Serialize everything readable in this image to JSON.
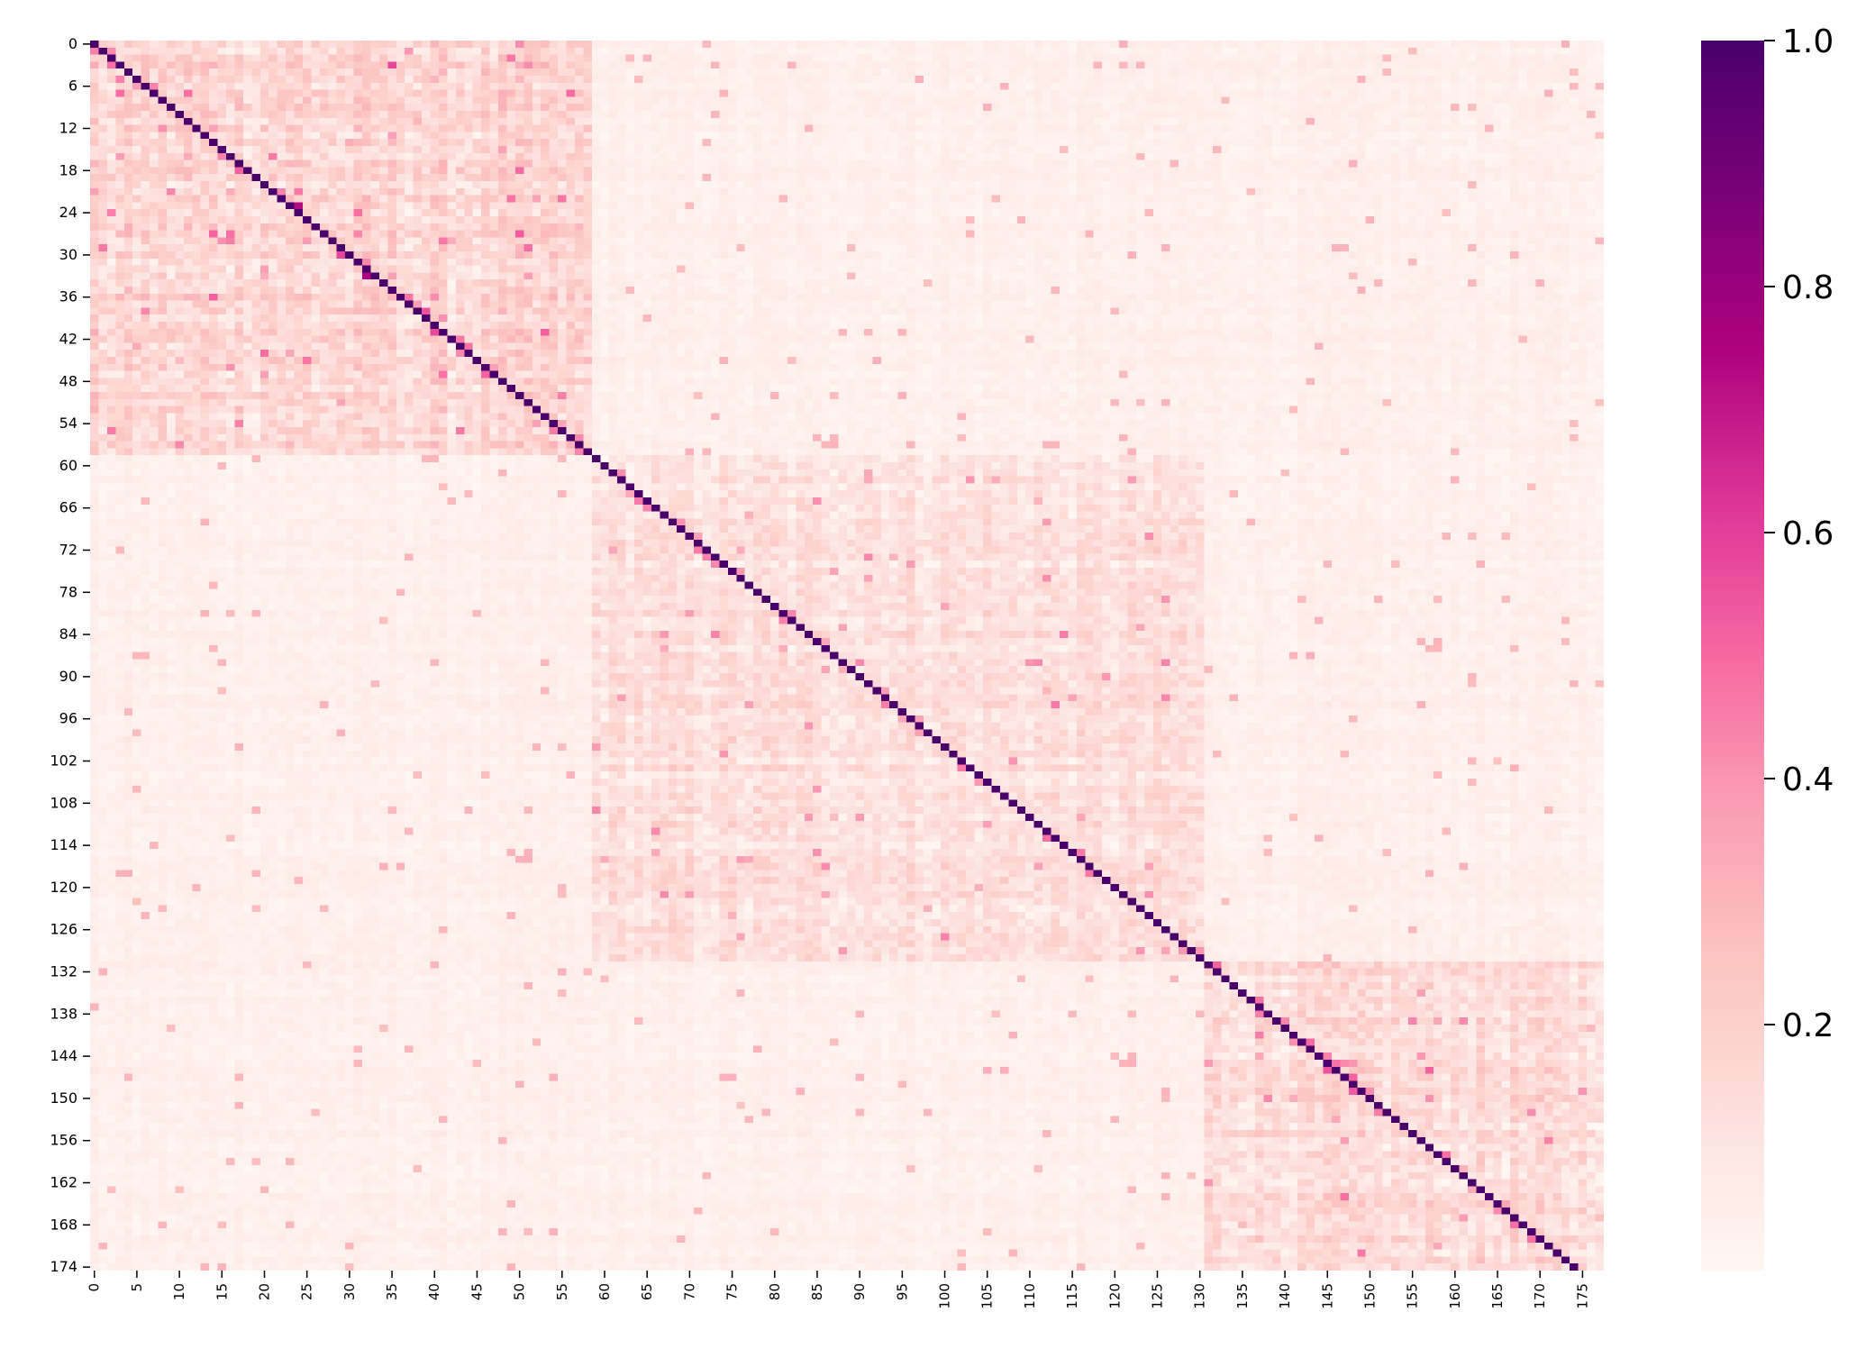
{
  "chart_data": {
    "type": "heatmap",
    "title": "",
    "xlabel": "",
    "ylabel": "",
    "n_rows": 175,
    "n_cols": 178,
    "x_tick_labels": [
      "0",
      "5",
      "10",
      "15",
      "20",
      "25",
      "30",
      "35",
      "40",
      "45",
      "50",
      "55",
      "60",
      "65",
      "70",
      "75",
      "80",
      "85",
      "90",
      "95",
      "100",
      "105",
      "110",
      "115",
      "120",
      "125",
      "130",
      "135",
      "140",
      "145",
      "150",
      "155",
      "160",
      "165",
      "170",
      "175"
    ],
    "y_tick_labels": [
      "0",
      "6",
      "12",
      "18",
      "24",
      "30",
      "36",
      "42",
      "48",
      "54",
      "60",
      "66",
      "72",
      "78",
      "84",
      "90",
      "96",
      "102",
      "108",
      "114",
      "120",
      "126",
      "132",
      "138",
      "144",
      "150",
      "156",
      "162",
      "168",
      "174"
    ],
    "diagonal_value": 1.0,
    "blocks": [
      {
        "rows": [
          0,
          58
        ],
        "cols": [
          0,
          58
        ],
        "mean_value": 0.16
      },
      {
        "rows": [
          59,
          130
        ],
        "cols": [
          59,
          130
        ],
        "mean_value": 0.12
      },
      {
        "rows": [
          131,
          174
        ],
        "cols": [
          131,
          177
        ],
        "mean_value": 0.14
      }
    ],
    "off_block_value": 0.04,
    "value_range": [
      0.0,
      1.0
    ],
    "colormap": "RdPu",
    "colorbar": {
      "ticks": [
        "0.2",
        "0.4",
        "0.6",
        "0.8",
        "1.0"
      ],
      "range": [
        0.0,
        1.0
      ],
      "colors": [
        "#fff7f3",
        "#fde0dd",
        "#fcc5c0",
        "#fa9fb5",
        "#f768a1",
        "#dd3497",
        "#ae017e",
        "#7a0177",
        "#49006a"
      ]
    },
    "grid": false,
    "legend": "colorbar-right"
  }
}
